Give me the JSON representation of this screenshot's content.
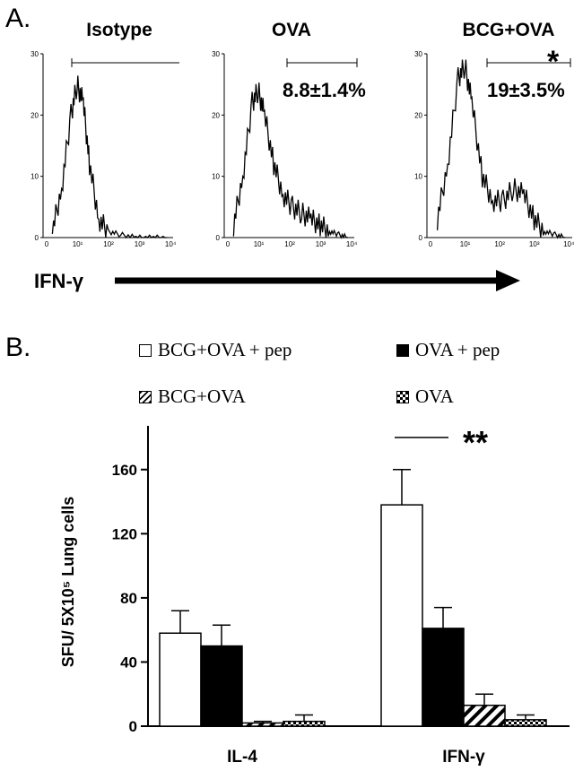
{
  "panel_a": {
    "letter": "A.",
    "arrow_label": "IFN-γ",
    "histograms": [
      {
        "title": "Isotype",
        "stat": "",
        "star": ""
      },
      {
        "title": "OVA",
        "stat": "8.8±1.4%",
        "star": ""
      },
      {
        "title": "BCG+OVA",
        "stat": "19±3.5%",
        "star": "*"
      }
    ],
    "y_ticks": [
      "0",
      "10",
      "20",
      "30"
    ],
    "x_ticks": [
      "0",
      "10¹",
      "10²",
      "10³",
      "10⁴"
    ]
  },
  "panel_b": {
    "letter": "B.",
    "legend": [
      {
        "label": "BCG+OVA + pep",
        "pattern": "white"
      },
      {
        "label": "OVA + pep",
        "pattern": "black"
      },
      {
        "label": "BCG+OVA",
        "pattern": "hatch"
      },
      {
        "label": "OVA",
        "pattern": "checker"
      }
    ],
    "significance": "**"
  },
  "chart_data": [
    {
      "type": "area",
      "title": "Isotype",
      "xlabel": "IFN-γ",
      "ylim": [
        0,
        30
      ],
      "x": [
        0.3,
        0.6,
        0.9,
        1.1,
        1.3,
        1.5,
        1.8,
        2.1,
        2.5,
        3.0,
        3.5,
        4.0
      ],
      "y": [
        1,
        8,
        20,
        25,
        22,
        12,
        3,
        1,
        0.5,
        0,
        0,
        0
      ]
    },
    {
      "type": "area",
      "title": "OVA",
      "xlabel": "IFN-γ",
      "ylim": [
        0,
        30
      ],
      "x": [
        0.3,
        0.6,
        0.9,
        1.1,
        1.3,
        1.6,
        1.9,
        2.2,
        2.5,
        2.8,
        3.1,
        3.4,
        3.7,
        4.0
      ],
      "y": [
        2,
        10,
        22,
        24,
        20,
        12,
        7,
        5,
        4,
        3,
        2,
        1,
        0.5,
        0
      ]
    },
    {
      "type": "area",
      "title": "BCG+OVA",
      "xlabel": "IFN-γ",
      "ylim": [
        0,
        30
      ],
      "x": [
        0.3,
        0.6,
        0.9,
        1.1,
        1.3,
        1.6,
        1.9,
        2.2,
        2.5,
        2.8,
        3.1,
        3.4,
        3.7,
        4.0
      ],
      "y": [
        3,
        12,
        26,
        28,
        22,
        10,
        6,
        6,
        8,
        7,
        3,
        1,
        0.5,
        0
      ]
    },
    {
      "type": "bar",
      "categories": [
        "IL-4",
        "IFN-γ"
      ],
      "ylabel": "SFU/ 5X10⁵ Lung cells",
      "ylim": [
        0,
        180
      ],
      "y_ticks": [
        0,
        40,
        80,
        120,
        160
      ],
      "series": [
        {
          "name": "BCG+OVA + pep",
          "values": [
            58,
            138
          ],
          "errors": [
            14,
            22
          ]
        },
        {
          "name": "OVA + pep",
          "values": [
            50,
            61
          ],
          "errors": [
            13,
            13
          ]
        },
        {
          "name": "BCG+OVA",
          "values": [
            2,
            13
          ],
          "errors": [
            1,
            7
          ]
        },
        {
          "name": "OVA",
          "values": [
            3,
            4
          ],
          "errors": [
            4,
            3
          ]
        }
      ]
    }
  ]
}
